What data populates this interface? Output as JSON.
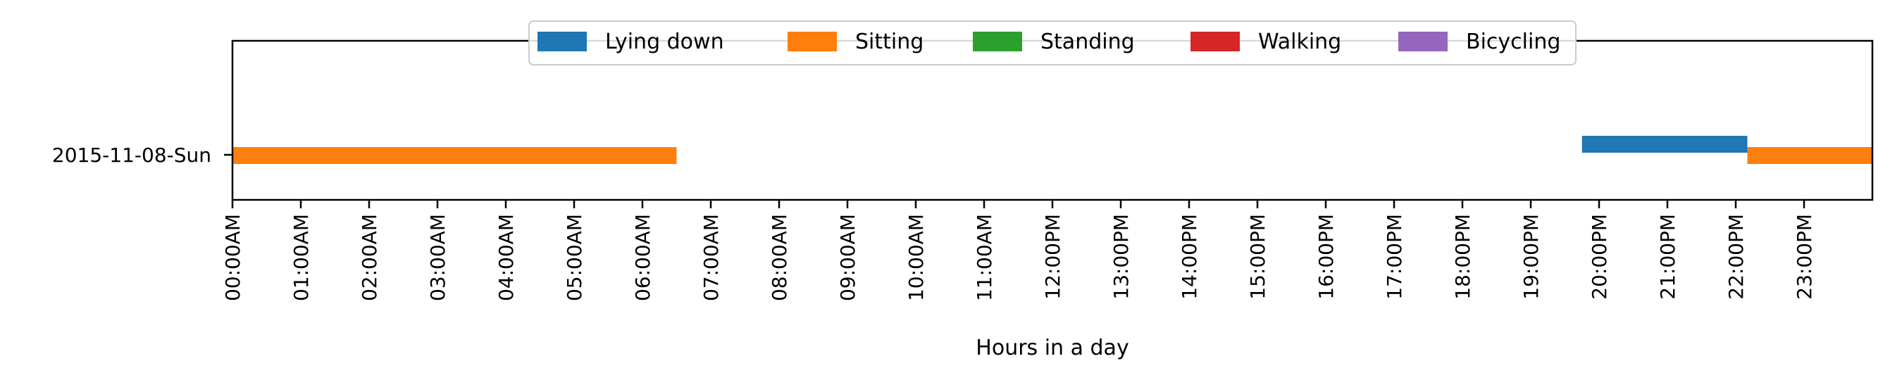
{
  "chart_data": {
    "type": "timeline",
    "xlabel": "Hours in a day",
    "xlim": [
      0,
      24
    ],
    "x_ticks": [
      {
        "value": 0,
        "label": "00:00AM"
      },
      {
        "value": 1,
        "label": "01:00AM"
      },
      {
        "value": 2,
        "label": "02:00AM"
      },
      {
        "value": 3,
        "label": "03:00AM"
      },
      {
        "value": 4,
        "label": "04:00AM"
      },
      {
        "value": 5,
        "label": "05:00AM"
      },
      {
        "value": 6,
        "label": "06:00AM"
      },
      {
        "value": 7,
        "label": "07:00AM"
      },
      {
        "value": 8,
        "label": "08:00AM"
      },
      {
        "value": 9,
        "label": "09:00AM"
      },
      {
        "value": 10,
        "label": "10:00AM"
      },
      {
        "value": 11,
        "label": "11:00AM"
      },
      {
        "value": 12,
        "label": "12:00PM"
      },
      {
        "value": 13,
        "label": "13:00PM"
      },
      {
        "value": 14,
        "label": "14:00PM"
      },
      {
        "value": 15,
        "label": "15:00PM"
      },
      {
        "value": 16,
        "label": "16:00PM"
      },
      {
        "value": 17,
        "label": "17:00PM"
      },
      {
        "value": 18,
        "label": "18:00PM"
      },
      {
        "value": 19,
        "label": "19:00PM"
      },
      {
        "value": 20,
        "label": "20:00PM"
      },
      {
        "value": 21,
        "label": "21:00PM"
      },
      {
        "value": 22,
        "label": "22:00PM"
      },
      {
        "value": 23,
        "label": "23:00PM"
      }
    ],
    "categories": [
      "2015-11-08-Sun"
    ],
    "legend_position": "top-center",
    "series": [
      {
        "name": "Lying down",
        "color": "#1f77b4",
        "offset": -1
      },
      {
        "name": "Sitting",
        "color": "#ff7f0e",
        "offset": 0
      },
      {
        "name": "Standing",
        "color": "#2ca02c",
        "offset": 1
      },
      {
        "name": "Walking",
        "color": "#d62728",
        "offset": 2
      },
      {
        "name": "Bicycling",
        "color": "#9467bd",
        "offset": 3
      }
    ],
    "segments": [
      {
        "category": "2015-11-08-Sun",
        "activity": "Sitting",
        "start": 0.0,
        "end": 6.5
      },
      {
        "category": "2015-11-08-Sun",
        "activity": "Lying down",
        "start": 19.75,
        "end": 22.17
      },
      {
        "category": "2015-11-08-Sun",
        "activity": "Sitting",
        "start": 22.17,
        "end": 24.0
      }
    ]
  }
}
